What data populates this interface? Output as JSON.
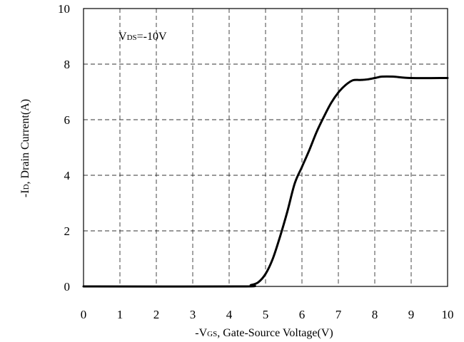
{
  "chart_data": {
    "type": "line",
    "title": "",
    "xlabel": {
      "prefix": "-V",
      "sub": "GS",
      "suffix": ", Gate-Source Voltage(V)"
    },
    "ylabel": {
      "prefix": "-I",
      "sub": "D",
      "suffix": ", Drain Current(A)"
    },
    "annotation": {
      "prefix": "V",
      "sub": "DS",
      "suffix": "=-10V"
    },
    "xlim": [
      0,
      10
    ],
    "ylim": [
      0,
      10
    ],
    "xticks": [
      0,
      1,
      2,
      3,
      4,
      5,
      6,
      7,
      8,
      9,
      10
    ],
    "yticks": [
      0,
      2,
      4,
      6,
      8,
      10
    ],
    "grid": true,
    "grid_style": "dashed",
    "series": [
      {
        "color": "#000000",
        "x": [
          0,
          4.3,
          4.6,
          4.8,
          5.0,
          5.2,
          5.4,
          5.6,
          5.8,
          6.0,
          6.2,
          6.4,
          6.6,
          6.8,
          7.0,
          7.2,
          7.4,
          7.6,
          7.8,
          8.0,
          8.2,
          8.5,
          9.0,
          10.0
        ],
        "y": [
          0,
          0.0,
          0.05,
          0.15,
          0.45,
          1.0,
          1.8,
          2.7,
          3.7,
          4.3,
          4.9,
          5.55,
          6.1,
          6.6,
          6.98,
          7.25,
          7.42,
          7.43,
          7.45,
          7.5,
          7.55,
          7.55,
          7.5,
          7.5
        ]
      }
    ]
  }
}
